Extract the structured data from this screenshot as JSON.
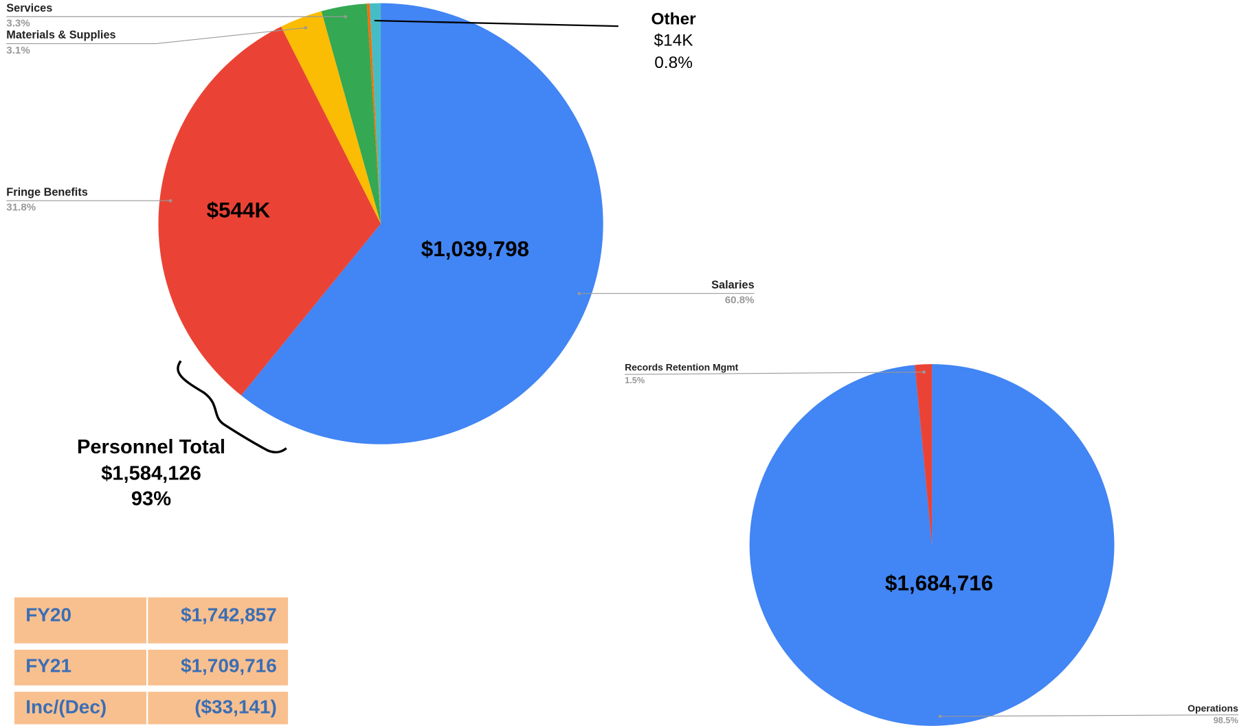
{
  "chart_data": [
    {
      "type": "pie",
      "categories": [
        "Salaries",
        "Fringe Benefits",
        "Materials & Supplies",
        "Services",
        null,
        "Other"
      ],
      "values": [
        60.8,
        31.8,
        3.1,
        3.3,
        0.2,
        0.8
      ],
      "value_labels": [
        "60.8%",
        "31.8%",
        "3.1%",
        "3.3%",
        null,
        "0.8%"
      ],
      "amount_labels": [
        "$1,039,798",
        "$544K",
        null,
        null,
        null,
        "$14K"
      ],
      "colors": [
        "#4285f4",
        "#ea4335",
        "#fbbc04",
        "#34a853",
        "#ff6d01",
        "#46bdc6"
      ]
    },
    {
      "type": "pie",
      "categories": [
        "Operations",
        "Records Retention Mgmt"
      ],
      "values": [
        98.5,
        1.5
      ],
      "value_labels": [
        "98.5%",
        "1.5%"
      ],
      "amount_labels": [
        "$1,684,716",
        null
      ],
      "colors": [
        "#4285f4",
        "#ea4335"
      ]
    }
  ],
  "personnel_total": {
    "label": "Personnel Total",
    "amount": "$1,584,126",
    "share": "93%"
  },
  "table": {
    "rows": [
      [
        "FY20",
        "$1,742,857"
      ],
      [
        "FY21",
        "$1,709,716"
      ],
      [
        "Inc/(Dec)",
        "($33,141)"
      ]
    ]
  }
}
